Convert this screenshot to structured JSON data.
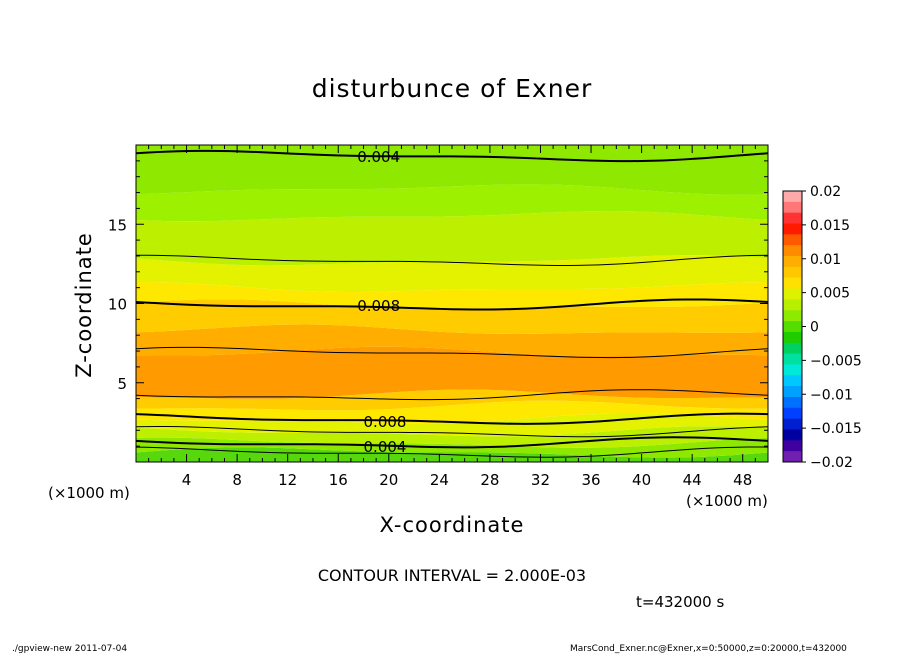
{
  "chart_data": {
    "type": "contour",
    "title": "disturbunce of Exner",
    "xlabel": "X-coordinate",
    "ylabel": "Z-coordinate",
    "x_unit_left": "(×1000 m)",
    "x_unit_right": "(×1000 m)",
    "xlim": [
      0,
      50
    ],
    "ylim": [
      0,
      20
    ],
    "x_ticks": [
      4,
      8,
      12,
      16,
      20,
      24,
      28,
      32,
      36,
      40,
      44,
      48
    ],
    "y_ticks": [
      5,
      10,
      15
    ],
    "contour_interval_text": "CONTOUR INTERVAL = 2.000E-03",
    "time_text": "t=432000 s",
    "contour_labels": [
      {
        "text": "0.004",
        "x": 17.5,
        "z": 19.3
      },
      {
        "text": "0.008",
        "x": 17.5,
        "z": 9.9
      },
      {
        "text": "0.008",
        "x": 18.0,
        "z": 2.6
      },
      {
        "text": "0.004",
        "x": 18.0,
        "z": 1.0
      }
    ],
    "field_bands": [
      {
        "z_from": 0.0,
        "z_to": 0.6,
        "value_class": "0.002"
      },
      {
        "z_from": 0.6,
        "z_to": 1.2,
        "value_class": "0.004"
      },
      {
        "z_from": 1.2,
        "z_to": 1.9,
        "value_class": "0.006"
      },
      {
        "z_from": 1.9,
        "z_to": 2.7,
        "value_class": "0.007"
      },
      {
        "z_from": 2.7,
        "z_to": 3.5,
        "value_class": "0.008"
      },
      {
        "z_from": 3.5,
        "z_to": 4.2,
        "value_class": "0.009"
      },
      {
        "z_from": 4.2,
        "z_to": 6.9,
        "value_class": "0.011"
      },
      {
        "z_from": 6.9,
        "z_to": 8.3,
        "value_class": "0.010"
      },
      {
        "z_from": 8.3,
        "z_to": 9.9,
        "value_class": "0.009"
      },
      {
        "z_from": 9.9,
        "z_to": 11.0,
        "value_class": "0.008"
      },
      {
        "z_from": 11.0,
        "z_to": 12.7,
        "value_class": "0.007"
      },
      {
        "z_from": 12.7,
        "z_to": 15.5,
        "value_class": "0.006"
      },
      {
        "z_from": 15.5,
        "z_to": 17.2,
        "value_class": "0.005"
      },
      {
        "z_from": 17.2,
        "z_to": 20.0,
        "value_class": "0.004"
      }
    ],
    "colorbar": {
      "range": [
        -0.02,
        0.02
      ],
      "tick_labels": [
        "0.02",
        "0.015",
        "0.01",
        "0.005",
        "0",
        "−0.005",
        "−0.01",
        "−0.015",
        "−0.02"
      ],
      "colors_top_to_bottom": [
        "#ffaaaa",
        "#ff7777",
        "#ff3333",
        "#ff1a00",
        "#ff5a00",
        "#ff8c00",
        "#ffae00",
        "#ffc800",
        "#ffe000",
        "#ddf200",
        "#b8ee00",
        "#8eea00",
        "#55dd00",
        "#1fcc00",
        "#00d060",
        "#00e0a0",
        "#00e8d8",
        "#00c8ff",
        "#00a0ff",
        "#0070ff",
        "#0040ff",
        "#0020d0",
        "#0000a0",
        "#4000a0",
        "#7020b0"
      ]
    },
    "field_colors": {
      "0.002": "#56d80d",
      "0.004": "#8ee800",
      "0.005": "#9df000",
      "0.006": "#bdf000",
      "0.007": "#e4f200",
      "0.008": "#ffe800",
      "0.009": "#ffcc00",
      "0.010": "#ffae00",
      "0.011": "#ff9a00"
    }
  },
  "footer": {
    "left": "./gpview-new   2011-07-04",
    "right": "MarsCond_Exner.nc@Exner,x=0:50000,z=0:20000,t=432000"
  }
}
